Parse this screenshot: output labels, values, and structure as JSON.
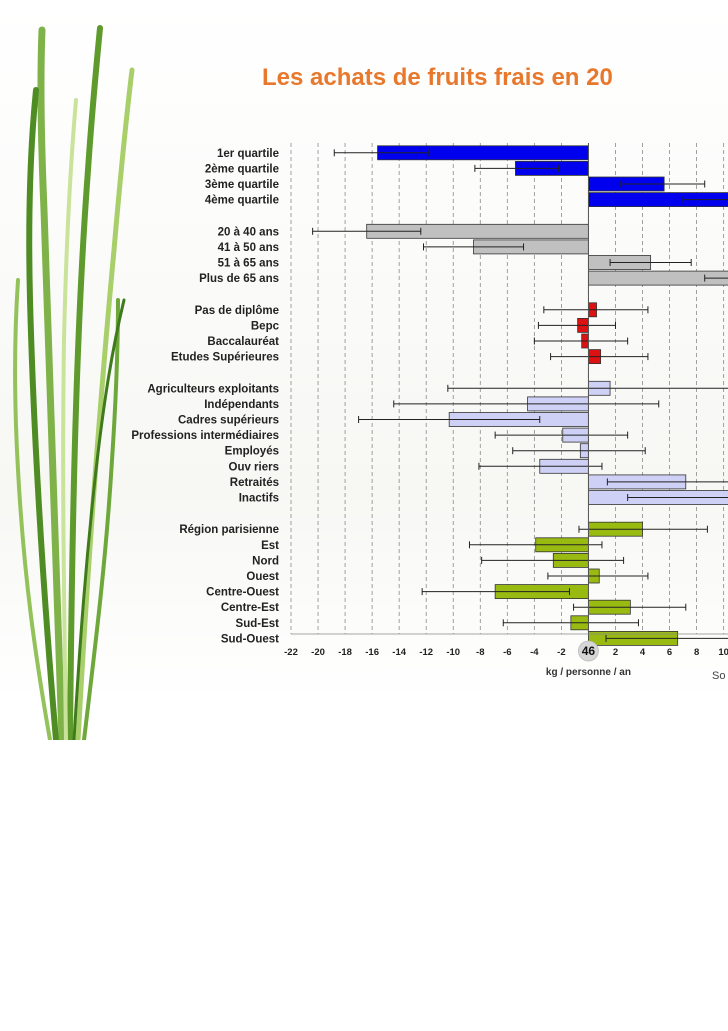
{
  "slide": {
    "title": "Les achats de fruits frais en 20"
  },
  "chart_data": {
    "type": "bar",
    "orientation": "horizontal",
    "x_axis": {
      "min": -22,
      "max": 10,
      "step": 2,
      "ticks": [
        "-22",
        "-20",
        "-18",
        "-16",
        "-14",
        "-12",
        "-10",
        "-8",
        "-6",
        "-4",
        "-2",
        "46",
        "2",
        "4",
        "6",
        "8",
        "10"
      ],
      "center_label": "46",
      "label": "kg / personne / an"
    },
    "source_fragment": "So",
    "grid": "vertical-dashed",
    "groups": [
      {
        "color": "#0000ee",
        "items": [
          {
            "label": "1er quartile",
            "value": -15.6,
            "err_low": -18.8,
            "err_high": -11.8
          },
          {
            "label": "2ème quartile",
            "value": -5.4,
            "err_low": -8.4,
            "err_high": -2.2
          },
          {
            "label": "3ème quartile",
            "value": 5.6,
            "err_low": 2.4,
            "err_high": 8.6
          },
          {
            "label": "4ème quartile",
            "value": 10.4,
            "err_low": 7.0,
            "err_high": 13.5
          }
        ]
      },
      {
        "color": "#c0c0c0",
        "items": [
          {
            "label": "20 à 40 ans",
            "value": -16.4,
            "err_low": -20.4,
            "err_high": -12.4
          },
          {
            "label": "41 à 50 ans",
            "value": -8.5,
            "err_low": -12.2,
            "err_high": -4.8
          },
          {
            "label": "51 à 65 ans",
            "value": 4.6,
            "err_low": 1.6,
            "err_high": 7.6
          },
          {
            "label": "Plus de 65 ans",
            "value": 12.0,
            "err_low": 8.6,
            "err_high": 15.4
          }
        ]
      },
      {
        "color": "#dd1111",
        "items": [
          {
            "label": "Pas de diplôme",
            "value": 0.6,
            "err_low": -3.3,
            "err_high": 4.4
          },
          {
            "label": "Bepc",
            "value": -0.8,
            "err_low": -3.7,
            "err_high": 2.0
          },
          {
            "label": "Baccalauréat",
            "value": -0.5,
            "err_low": -4.0,
            "err_high": 2.9
          },
          {
            "label": "Etudes Supérieures",
            "value": 0.9,
            "err_low": -2.8,
            "err_high": 4.4
          }
        ]
      },
      {
        "color": "#cfd0f5",
        "items": [
          {
            "label": "Agriculteurs exploitants",
            "value": 1.6,
            "err_low": -10.4,
            "err_high": 13.0
          },
          {
            "label": "Indépendants",
            "value": -4.5,
            "err_low": -14.4,
            "err_high": 5.2
          },
          {
            "label": "Cadres supérieurs",
            "value": -10.3,
            "err_low": -17.0,
            "err_high": -3.6
          },
          {
            "label": "Professions intermédiaires",
            "value": -1.9,
            "err_low": -6.9,
            "err_high": 2.9
          },
          {
            "label": "Employés",
            "value": -0.6,
            "err_low": -5.6,
            "err_high": 4.2
          },
          {
            "label": "Ouv riers",
            "value": -3.6,
            "err_low": -8.1,
            "err_high": 1.0
          },
          {
            "label": "Retraités",
            "value": 7.2,
            "err_low": 1.4,
            "err_high": 11.5
          },
          {
            "label": "Inactifs",
            "value": 10.6,
            "err_low": 2.9,
            "err_high": 15.0
          }
        ]
      },
      {
        "color": "#99bb11",
        "items": [
          {
            "label": "Région parisienne",
            "value": 4.0,
            "err_low": -0.7,
            "err_high": 8.8
          },
          {
            "label": "Est",
            "value": -3.9,
            "err_low": -8.8,
            "err_high": 1.0
          },
          {
            "label": "Nord",
            "value": -2.6,
            "err_low": -7.9,
            "err_high": 2.6
          },
          {
            "label": "Ouest",
            "value": 0.8,
            "err_low": -3.0,
            "err_high": 4.4
          },
          {
            "label": "Centre-Ouest",
            "value": -6.9,
            "err_low": -12.3,
            "err_high": -1.4
          },
          {
            "label": "Centre-Est",
            "value": 3.1,
            "err_low": -1.1,
            "err_high": 7.2
          },
          {
            "label": "Sud-Est",
            "value": -1.3,
            "err_low": -6.3,
            "err_high": 3.7
          },
          {
            "label": "Sud-Ouest",
            "value": 6.6,
            "err_low": 1.3,
            "err_high": 12.0
          }
        ]
      }
    ]
  }
}
